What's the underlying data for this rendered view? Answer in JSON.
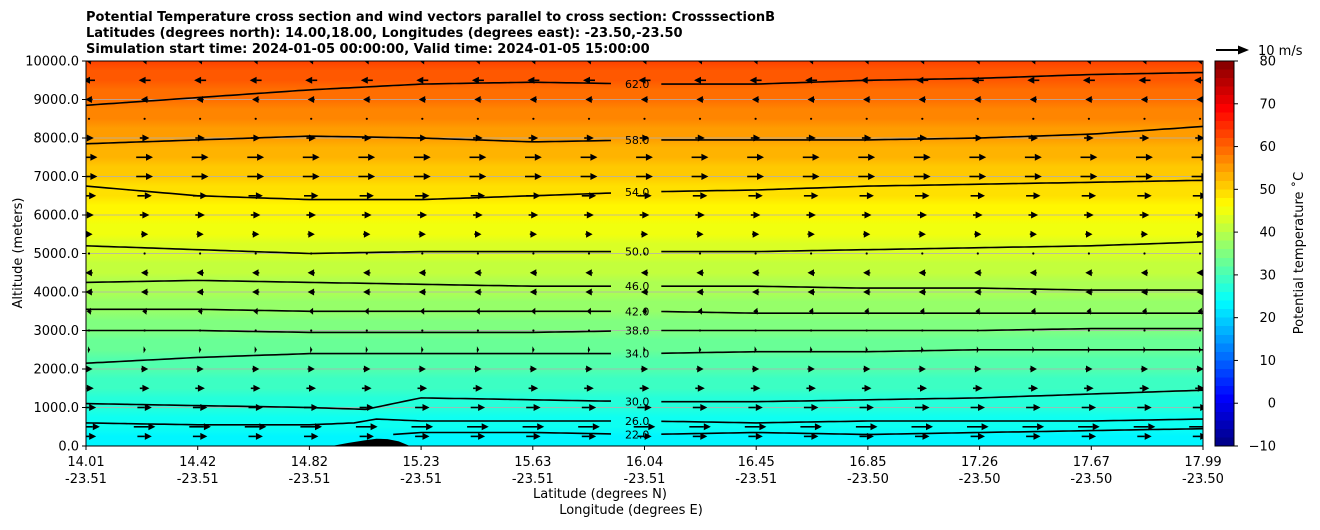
{
  "chart_data": {
    "type": "heatmap",
    "title_lines": [
      "Potential Temperature cross section and wind vectors parallel to cross section: CrosssectionB",
      "Latitudes (degrees north): 14.00,18.00, Longitudes (degrees east): -23.50,-23.50",
      "Simulation start time: 2024-01-05 00:00:00, Valid time: 2024-01-05 15:00:00"
    ],
    "ylabel": "Altitude (meters)",
    "xlabel_lines": [
      "Latitude (degrees N)",
      "Longitude (degrees E)"
    ],
    "ylim": [
      0,
      10000
    ],
    "yticks": [
      0,
      1000,
      2000,
      3000,
      4000,
      5000,
      6000,
      7000,
      8000,
      9000,
      10000
    ],
    "ytick_labels": [
      "0.0",
      "1000.0",
      "2000.0",
      "3000.0",
      "4000.0",
      "5000.0",
      "6000.0",
      "7000.0",
      "8000.0",
      "9000.0",
      "10000.0"
    ],
    "x_ticks": [
      {
        "lat": "14.01",
        "lon": "-23.51"
      },
      {
        "lat": "14.42",
        "lon": "-23.51"
      },
      {
        "lat": "14.82",
        "lon": "-23.51"
      },
      {
        "lat": "15.23",
        "lon": "-23.51"
      },
      {
        "lat": "15.63",
        "lon": "-23.51"
      },
      {
        "lat": "16.04",
        "lon": "-23.51"
      },
      {
        "lat": "16.45",
        "lon": "-23.51"
      },
      {
        "lat": "16.85",
        "lon": "-23.50"
      },
      {
        "lat": "17.26",
        "lon": "-23.50"
      },
      {
        "lat": "17.67",
        "lon": "-23.50"
      },
      {
        "lat": "17.99",
        "lon": "-23.50"
      }
    ],
    "grid": "horizontal",
    "colorbar": {
      "label": "Potential temperature ˚C",
      "range": [
        -10,
        80
      ],
      "ticks": [
        -10,
        0,
        10,
        20,
        30,
        40,
        50,
        60,
        70,
        80
      ],
      "colormap": "jet"
    },
    "quiver_key": {
      "label": "10 m/s"
    },
    "surface_temperature": 22,
    "lapse_rate_per_km": 4.0,
    "contours": [
      {
        "label": "62.0",
        "value": 62,
        "x": [
          0,
          0.1,
          0.2,
          0.3,
          0.4,
          0.5,
          0.6,
          0.7,
          0.8,
          0.9,
          1.0
        ],
        "alt": [
          8850,
          9050,
          9250,
          9400,
          9450,
          9400,
          9400,
          9500,
          9550,
          9650,
          9700
        ]
      },
      {
        "label": "58.0",
        "value": 58,
        "x": [
          0,
          0.1,
          0.2,
          0.3,
          0.4,
          0.5,
          0.6,
          0.7,
          0.8,
          0.9,
          1.0
        ],
        "alt": [
          7850,
          7950,
          8050,
          8000,
          7900,
          7950,
          7950,
          7950,
          8000,
          8100,
          8300
        ]
      },
      {
        "label": "54.0",
        "value": 54,
        "x": [
          0,
          0.1,
          0.2,
          0.3,
          0.4,
          0.5,
          0.6,
          0.7,
          0.8,
          0.9,
          1.0
        ],
        "alt": [
          6750,
          6500,
          6400,
          6400,
          6500,
          6600,
          6650,
          6750,
          6800,
          6850,
          6900
        ]
      },
      {
        "label": "50.0",
        "value": 50,
        "x": [
          0,
          0.1,
          0.2,
          0.3,
          0.4,
          0.5,
          0.6,
          0.7,
          0.8,
          0.9,
          1.0
        ],
        "alt": [
          5200,
          5100,
          5000,
          5050,
          5050,
          5050,
          5050,
          5100,
          5150,
          5200,
          5300
        ]
      },
      {
        "label": "46.0",
        "value": 46,
        "x": [
          0,
          0.1,
          0.2,
          0.3,
          0.4,
          0.5,
          0.6,
          0.7,
          0.8,
          0.9,
          1.0
        ],
        "alt": [
          4250,
          4300,
          4250,
          4200,
          4150,
          4150,
          4150,
          4100,
          4100,
          4050,
          4050
        ]
      },
      {
        "label": "42.0",
        "value": 42,
        "x": [
          0,
          0.1,
          0.2,
          0.3,
          0.4,
          0.5,
          0.6,
          0.7,
          0.8,
          0.9,
          1.0
        ],
        "alt": [
          3550,
          3550,
          3500,
          3500,
          3500,
          3500,
          3450,
          3450,
          3450,
          3450,
          3450
        ]
      },
      {
        "label": "38.0",
        "value": 38,
        "x": [
          0,
          0.1,
          0.2,
          0.3,
          0.4,
          0.5,
          0.6,
          0.7,
          0.8,
          0.9,
          1.0
        ],
        "alt": [
          3000,
          3000,
          2950,
          2950,
          2950,
          3000,
          3000,
          3000,
          3000,
          3050,
          3050
        ]
      },
      {
        "label": "34.0",
        "value": 34,
        "x": [
          0,
          0.1,
          0.2,
          0.3,
          0.4,
          0.5,
          0.6,
          0.7,
          0.8,
          0.9,
          1.0
        ],
        "alt": [
          2150,
          2300,
          2400,
          2400,
          2400,
          2400,
          2450,
          2450,
          2500,
          2500,
          2500
        ]
      },
      {
        "label": "30.0",
        "value": 30,
        "x": [
          0,
          0.1,
          0.2,
          0.25,
          0.3,
          0.4,
          0.5,
          0.6,
          0.7,
          0.8,
          0.9,
          1.0
        ],
        "alt": [
          1100,
          1050,
          1000,
          950,
          1250,
          1200,
          1150,
          1150,
          1200,
          1250,
          1350,
          1450
        ]
      },
      {
        "label": "26.0",
        "value": 26,
        "x": [
          0,
          0.1,
          0.2,
          0.24,
          0.26,
          0.3,
          0.4,
          0.5,
          0.6,
          0.7,
          0.8,
          0.9,
          1.0
        ],
        "alt": [
          600,
          550,
          550,
          600,
          700,
          650,
          650,
          650,
          600,
          650,
          650,
          650,
          700
        ]
      },
      {
        "label": "22.0",
        "value": 22,
        "x": [
          0.275,
          0.3,
          0.4,
          0.5,
          0.6,
          0.7,
          0.8,
          0.9,
          1.0
        ],
        "alt": [
          300,
          350,
          350,
          300,
          350,
          300,
          350,
          400,
          450
        ]
      }
    ],
    "terrain": {
      "x": [
        0.22,
        0.235,
        0.25,
        0.26,
        0.27,
        0.28,
        0.29
      ],
      "alt": [
        0,
        80,
        150,
        190,
        180,
        120,
        0
      ]
    },
    "wind_levels": [
      {
        "alt": 250,
        "u": 6
      },
      {
        "alt": 500,
        "u": 9
      },
      {
        "alt": 1000,
        "u": 6
      },
      {
        "alt": 1500,
        "u": 4
      },
      {
        "alt": 2000,
        "u": 3
      },
      {
        "alt": 2500,
        "u": 1
      },
      {
        "alt": 3000,
        "u": 0
      },
      {
        "alt": 3500,
        "u": -2
      },
      {
        "alt": 4000,
        "u": -3
      },
      {
        "alt": 4500,
        "u": -3
      },
      {
        "alt": 5000,
        "u": 0
      },
      {
        "alt": 5500,
        "u": 3
      },
      {
        "alt": 6000,
        "u": 4
      },
      {
        "alt": 6500,
        "u": 6
      },
      {
        "alt": 7000,
        "u": 7
      },
      {
        "alt": 7500,
        "u": 7
      },
      {
        "alt": 8000,
        "u": 4
      },
      {
        "alt": 8500,
        "u": 0
      },
      {
        "alt": 9000,
        "u": -3
      },
      {
        "alt": 9500,
        "u": -5
      },
      {
        "alt": 10000,
        "u": -2
      }
    ]
  }
}
